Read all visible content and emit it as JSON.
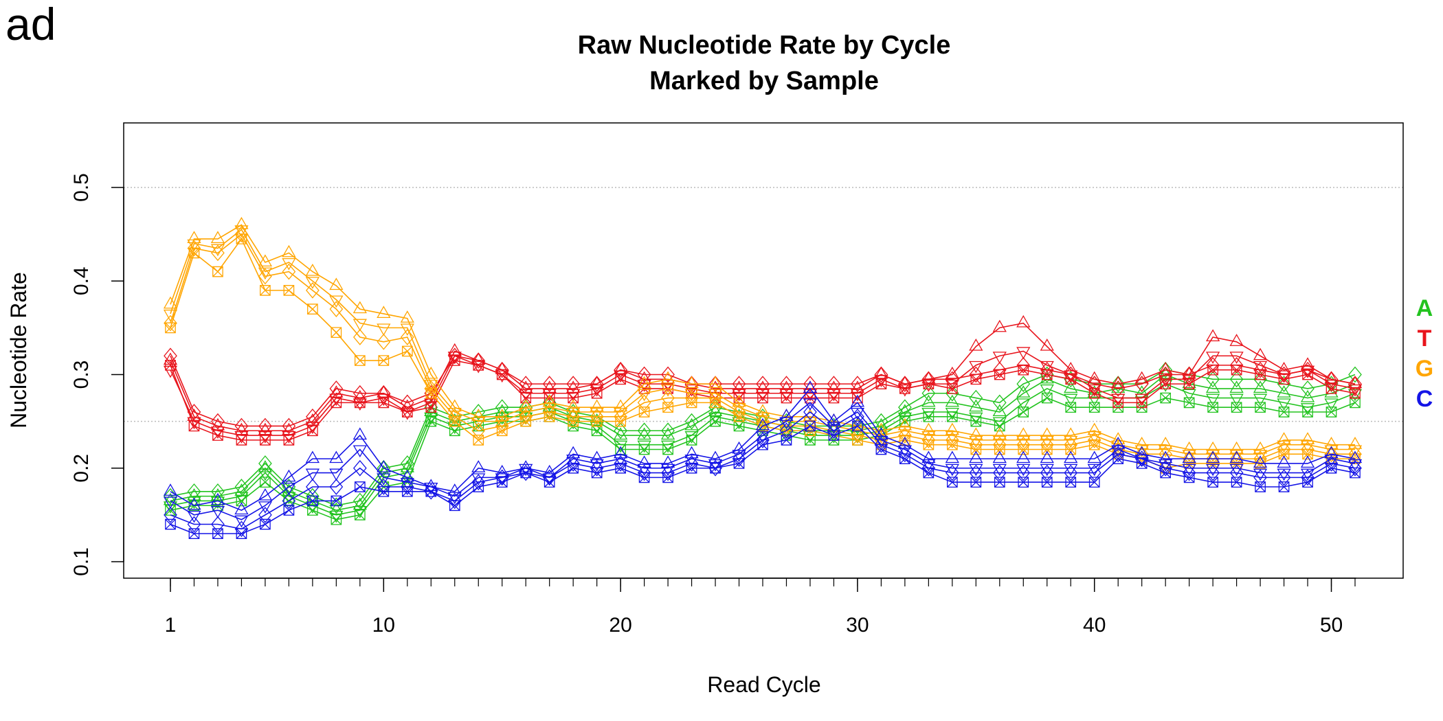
{
  "panel_label": "ad",
  "chart_data": {
    "type": "line",
    "title": "Raw Nucleotide Rate by Cycle",
    "subtitle": "Marked by Sample",
    "xlabel": "Read Cycle",
    "ylabel": "Nucleotide Rate",
    "xlim": [
      1,
      51
    ],
    "ylim": [
      0.1,
      0.5
    ],
    "x_ticks": [
      1,
      10,
      20,
      30,
      40,
      50
    ],
    "y_ticks": [
      0.1,
      0.2,
      0.3,
      0.4,
      0.5
    ],
    "reference_lines": [
      0.25,
      0.5
    ],
    "grid": false,
    "legend_position": "right",
    "markers": [
      "triangle-up",
      "triangle-down",
      "diamond",
      "square-x",
      "circle"
    ],
    "series": [
      {
        "name": "A",
        "color": "#22c31f",
        "samples": [
          [
            0.165,
            0.17,
            0.17,
            0.175,
            0.2,
            0.175,
            0.165,
            0.155,
            0.16,
            0.195,
            0.2,
            0.26,
            0.25,
            0.255,
            0.26,
            0.26,
            0.265,
            0.255,
            0.25,
            0.235,
            0.235,
            0.235,
            0.245,
            0.26,
            0.255,
            0.25,
            0.245,
            0.24,
            0.24,
            0.24,
            0.245,
            0.26,
            0.27,
            0.27,
            0.265,
            0.26,
            0.28,
            0.295,
            0.285,
            0.28,
            0.285,
            0.28,
            0.3,
            0.29,
            0.285,
            0.285,
            0.285,
            0.28,
            0.275,
            0.28,
            0.29
          ],
          [
            0.16,
            0.165,
            0.165,
            0.17,
            0.195,
            0.17,
            0.16,
            0.15,
            0.155,
            0.19,
            0.195,
            0.255,
            0.245,
            0.25,
            0.255,
            0.255,
            0.26,
            0.25,
            0.245,
            0.225,
            0.225,
            0.225,
            0.235,
            0.255,
            0.25,
            0.245,
            0.24,
            0.235,
            0.235,
            0.235,
            0.24,
            0.255,
            0.26,
            0.26,
            0.255,
            0.25,
            0.27,
            0.285,
            0.275,
            0.275,
            0.275,
            0.275,
            0.29,
            0.28,
            0.275,
            0.275,
            0.275,
            0.27,
            0.265,
            0.27,
            0.28
          ],
          [
            0.17,
            0.175,
            0.175,
            0.18,
            0.205,
            0.18,
            0.17,
            0.16,
            0.165,
            0.2,
            0.205,
            0.265,
            0.255,
            0.26,
            0.265,
            0.265,
            0.27,
            0.26,
            0.255,
            0.24,
            0.24,
            0.24,
            0.25,
            0.265,
            0.26,
            0.255,
            0.25,
            0.245,
            0.245,
            0.245,
            0.25,
            0.265,
            0.28,
            0.28,
            0.275,
            0.27,
            0.29,
            0.3,
            0.295,
            0.29,
            0.29,
            0.29,
            0.305,
            0.3,
            0.295,
            0.295,
            0.295,
            0.29,
            0.285,
            0.29,
            0.3
          ],
          [
            0.155,
            0.16,
            0.16,
            0.165,
            0.185,
            0.165,
            0.155,
            0.145,
            0.15,
            0.18,
            0.185,
            0.25,
            0.24,
            0.245,
            0.25,
            0.25,
            0.255,
            0.245,
            0.24,
            0.22,
            0.22,
            0.22,
            0.23,
            0.25,
            0.245,
            0.24,
            0.235,
            0.23,
            0.23,
            0.23,
            0.235,
            0.25,
            0.255,
            0.255,
            0.25,
            0.245,
            0.26,
            0.275,
            0.265,
            0.265,
            0.265,
            0.265,
            0.275,
            0.27,
            0.265,
            0.265,
            0.265,
            0.26,
            0.26,
            0.26,
            0.27
          ]
        ]
      },
      {
        "name": "T",
        "color": "#e8141c",
        "samples": [
          [
            0.315,
            0.255,
            0.245,
            0.24,
            0.24,
            0.24,
            0.25,
            0.28,
            0.275,
            0.28,
            0.265,
            0.275,
            0.325,
            0.315,
            0.305,
            0.285,
            0.285,
            0.285,
            0.29,
            0.305,
            0.295,
            0.295,
            0.29,
            0.285,
            0.285,
            0.285,
            0.285,
            0.285,
            0.285,
            0.285,
            0.3,
            0.29,
            0.295,
            0.3,
            0.33,
            0.35,
            0.355,
            0.33,
            0.305,
            0.295,
            0.29,
            0.295,
            0.305,
            0.3,
            0.34,
            0.335,
            0.32,
            0.305,
            0.31,
            0.295,
            0.29
          ],
          [
            0.305,
            0.25,
            0.24,
            0.235,
            0.235,
            0.235,
            0.245,
            0.275,
            0.27,
            0.275,
            0.26,
            0.27,
            0.32,
            0.31,
            0.3,
            0.28,
            0.28,
            0.28,
            0.285,
            0.3,
            0.29,
            0.29,
            0.285,
            0.28,
            0.28,
            0.28,
            0.28,
            0.28,
            0.28,
            0.28,
            0.295,
            0.285,
            0.29,
            0.29,
            0.31,
            0.32,
            0.325,
            0.31,
            0.3,
            0.285,
            0.275,
            0.275,
            0.295,
            0.295,
            0.32,
            0.32,
            0.31,
            0.3,
            0.305,
            0.29,
            0.285
          ],
          [
            0.32,
            0.26,
            0.25,
            0.245,
            0.245,
            0.245,
            0.255,
            0.285,
            0.28,
            0.28,
            0.27,
            0.28,
            0.32,
            0.315,
            0.305,
            0.29,
            0.29,
            0.29,
            0.29,
            0.305,
            0.3,
            0.3,
            0.29,
            0.29,
            0.29,
            0.29,
            0.29,
            0.29,
            0.29,
            0.29,
            0.3,
            0.29,
            0.295,
            0.295,
            0.3,
            0.305,
            0.31,
            0.305,
            0.3,
            0.29,
            0.285,
            0.29,
            0.3,
            0.3,
            0.31,
            0.31,
            0.305,
            0.3,
            0.305,
            0.295,
            0.29
          ],
          [
            0.31,
            0.245,
            0.235,
            0.23,
            0.23,
            0.23,
            0.24,
            0.27,
            0.27,
            0.27,
            0.26,
            0.265,
            0.315,
            0.31,
            0.3,
            0.275,
            0.275,
            0.275,
            0.28,
            0.295,
            0.285,
            0.285,
            0.28,
            0.275,
            0.275,
            0.275,
            0.275,
            0.275,
            0.275,
            0.275,
            0.29,
            0.285,
            0.29,
            0.285,
            0.295,
            0.3,
            0.305,
            0.3,
            0.295,
            0.28,
            0.27,
            0.27,
            0.29,
            0.29,
            0.305,
            0.305,
            0.3,
            0.295,
            0.3,
            0.285,
            0.28
          ]
        ]
      },
      {
        "name": "G",
        "color": "#ffa500",
        "samples": [
          [
            0.375,
            0.445,
            0.445,
            0.46,
            0.42,
            0.43,
            0.41,
            0.395,
            0.37,
            0.365,
            0.36,
            0.3,
            0.265,
            0.255,
            0.255,
            0.265,
            0.27,
            0.265,
            0.265,
            0.265,
            0.29,
            0.295,
            0.29,
            0.29,
            0.27,
            0.26,
            0.255,
            0.255,
            0.25,
            0.245,
            0.24,
            0.245,
            0.24,
            0.24,
            0.235,
            0.235,
            0.235,
            0.235,
            0.235,
            0.24,
            0.23,
            0.225,
            0.225,
            0.22,
            0.22,
            0.22,
            0.22,
            0.23,
            0.23,
            0.225,
            0.225
          ],
          [
            0.365,
            0.44,
            0.435,
            0.455,
            0.41,
            0.42,
            0.4,
            0.38,
            0.355,
            0.35,
            0.35,
            0.29,
            0.26,
            0.25,
            0.25,
            0.26,
            0.265,
            0.26,
            0.26,
            0.26,
            0.28,
            0.285,
            0.28,
            0.28,
            0.265,
            0.255,
            0.25,
            0.25,
            0.245,
            0.24,
            0.235,
            0.24,
            0.235,
            0.235,
            0.23,
            0.23,
            0.23,
            0.23,
            0.23,
            0.235,
            0.225,
            0.22,
            0.22,
            0.215,
            0.215,
            0.215,
            0.215,
            0.225,
            0.225,
            0.22,
            0.22
          ],
          [
            0.355,
            0.435,
            0.43,
            0.45,
            0.405,
            0.41,
            0.39,
            0.37,
            0.34,
            0.335,
            0.34,
            0.285,
            0.255,
            0.24,
            0.245,
            0.255,
            0.26,
            0.255,
            0.255,
            0.255,
            0.27,
            0.275,
            0.275,
            0.275,
            0.26,
            0.25,
            0.245,
            0.245,
            0.24,
            0.235,
            0.23,
            0.235,
            0.23,
            0.23,
            0.225,
            0.225,
            0.225,
            0.225,
            0.225,
            0.23,
            0.22,
            0.215,
            0.215,
            0.21,
            0.21,
            0.21,
            0.21,
            0.22,
            0.22,
            0.215,
            0.215
          ],
          [
            0.35,
            0.43,
            0.41,
            0.445,
            0.39,
            0.39,
            0.37,
            0.345,
            0.315,
            0.315,
            0.325,
            0.28,
            0.25,
            0.23,
            0.24,
            0.25,
            0.255,
            0.25,
            0.25,
            0.25,
            0.26,
            0.265,
            0.27,
            0.27,
            0.255,
            0.245,
            0.24,
            0.24,
            0.235,
            0.23,
            0.225,
            0.23,
            0.225,
            0.225,
            0.22,
            0.22,
            0.22,
            0.22,
            0.22,
            0.225,
            0.215,
            0.21,
            0.2,
            0.205,
            0.205,
            0.205,
            0.205,
            0.215,
            0.215,
            0.21,
            0.21
          ]
        ]
      },
      {
        "name": "C",
        "color": "#1414e6",
        "samples": [
          [
            0.175,
            0.16,
            0.165,
            0.155,
            0.17,
            0.19,
            0.21,
            0.21,
            0.235,
            0.2,
            0.19,
            0.18,
            0.175,
            0.2,
            0.195,
            0.2,
            0.195,
            0.215,
            0.21,
            0.215,
            0.205,
            0.205,
            0.215,
            0.21,
            0.22,
            0.245,
            0.255,
            0.285,
            0.25,
            0.27,
            0.235,
            0.225,
            0.21,
            0.21,
            0.21,
            0.21,
            0.21,
            0.21,
            0.21,
            0.21,
            0.225,
            0.215,
            0.21,
            0.21,
            0.21,
            0.21,
            0.205,
            0.205,
            0.205,
            0.215,
            0.21
          ],
          [
            0.165,
            0.15,
            0.155,
            0.145,
            0.16,
            0.18,
            0.195,
            0.195,
            0.22,
            0.19,
            0.185,
            0.18,
            0.17,
            0.19,
            0.19,
            0.2,
            0.19,
            0.21,
            0.205,
            0.21,
            0.2,
            0.2,
            0.21,
            0.205,
            0.215,
            0.235,
            0.25,
            0.27,
            0.245,
            0.26,
            0.23,
            0.22,
            0.205,
            0.2,
            0.2,
            0.2,
            0.2,
            0.2,
            0.2,
            0.2,
            0.22,
            0.21,
            0.205,
            0.2,
            0.2,
            0.2,
            0.195,
            0.195,
            0.195,
            0.21,
            0.205
          ],
          [
            0.15,
            0.14,
            0.14,
            0.135,
            0.15,
            0.165,
            0.18,
            0.18,
            0.2,
            0.18,
            0.18,
            0.175,
            0.165,
            0.185,
            0.19,
            0.195,
            0.19,
            0.205,
            0.2,
            0.205,
            0.195,
            0.195,
            0.205,
            0.2,
            0.21,
            0.23,
            0.24,
            0.26,
            0.24,
            0.255,
            0.225,
            0.215,
            0.2,
            0.195,
            0.195,
            0.195,
            0.195,
            0.195,
            0.195,
            0.195,
            0.215,
            0.21,
            0.2,
            0.195,
            0.195,
            0.195,
            0.19,
            0.19,
            0.19,
            0.205,
            0.2
          ],
          [
            0.14,
            0.13,
            0.13,
            0.13,
            0.14,
            0.155,
            0.165,
            0.165,
            0.18,
            0.175,
            0.175,
            0.175,
            0.16,
            0.18,
            0.185,
            0.195,
            0.185,
            0.2,
            0.195,
            0.2,
            0.19,
            0.19,
            0.2,
            0.2,
            0.205,
            0.225,
            0.23,
            0.245,
            0.235,
            0.245,
            0.22,
            0.21,
            0.195,
            0.185,
            0.185,
            0.185,
            0.185,
            0.185,
            0.185,
            0.185,
            0.21,
            0.205,
            0.195,
            0.19,
            0.185,
            0.185,
            0.18,
            0.18,
            0.185,
            0.2,
            0.195
          ]
        ]
      }
    ]
  }
}
